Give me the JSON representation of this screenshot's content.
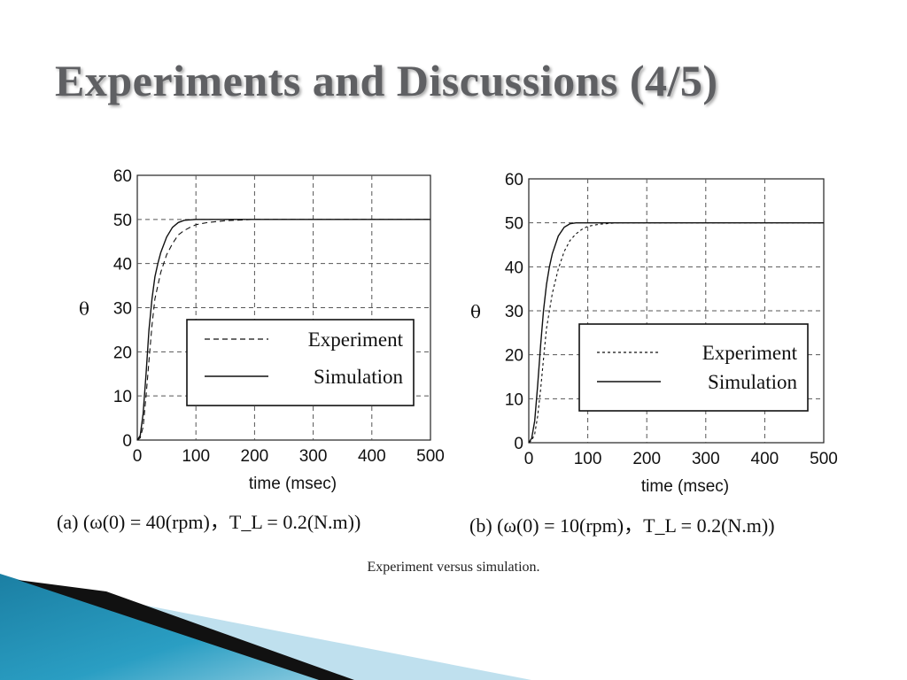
{
  "slide": {
    "title": "Experiments and Discussions (4/5)",
    "figure_caption": "Experiment versus simulation."
  },
  "colors": {
    "title": "#5f6063",
    "decor_blue": "#1b7fa3",
    "decor_light": "#bfe0ee",
    "decor_dark": "#111111"
  },
  "chart_data": [
    {
      "type": "line",
      "xlabel": "time (msec)",
      "ylabel": "θ",
      "xlim": [
        0,
        500
      ],
      "ylim": [
        0,
        60
      ],
      "x_ticks": [
        "0",
        "100",
        "200",
        "300",
        "400",
        "500"
      ],
      "y_ticks": [
        "0",
        "10",
        "20",
        "30",
        "40",
        "50",
        "60"
      ],
      "grid": true,
      "legend_position": "lower-right",
      "caption": "(a) (ω(0) = 40(rpm)，T_L = 0.2(N.m))",
      "series": [
        {
          "name": "Experiment",
          "style": "dashed",
          "x": [
            0,
            5,
            10,
            15,
            20,
            25,
            30,
            40,
            50,
            60,
            70,
            80,
            90,
            100,
            120,
            150,
            200,
            300,
            500
          ],
          "y": [
            0,
            0.5,
            3,
            10,
            18,
            26,
            32,
            38,
            42,
            44.5,
            46.5,
            47.5,
            48.2,
            48.8,
            49.3,
            49.7,
            50,
            50,
            50
          ]
        },
        {
          "name": "Simulation",
          "style": "solid",
          "x": [
            0,
            5,
            10,
            15,
            20,
            25,
            30,
            35,
            40,
            50,
            60,
            70,
            80,
            100,
            150,
            200,
            300,
            500
          ],
          "y": [
            0,
            1,
            6,
            15,
            25,
            32,
            37,
            40,
            42.5,
            46,
            48.2,
            49.3,
            49.8,
            50,
            50,
            50,
            50,
            50
          ]
        }
      ]
    },
    {
      "type": "line",
      "xlabel": "time (msec)",
      "ylabel": "θ",
      "xlim": [
        0,
        500
      ],
      "ylim": [
        0,
        60
      ],
      "x_ticks": [
        "0",
        "100",
        "200",
        "300",
        "400",
        "500"
      ],
      "y_ticks": [
        "0",
        "10",
        "20",
        "30",
        "40",
        "50",
        "60"
      ],
      "grid": true,
      "legend_position": "lower-right",
      "caption": "(b) (ω(0) = 10(rpm)，T_L = 0.2(N.m))",
      "series": [
        {
          "name": "Experiment",
          "style": "dotted",
          "x": [
            0,
            5,
            10,
            15,
            20,
            25,
            30,
            40,
            50,
            60,
            70,
            80,
            90,
            100,
            120,
            150,
            200,
            300,
            500
          ],
          "y": [
            0,
            0.5,
            2,
            6,
            12,
            19,
            26,
            34,
            39.5,
            43.5,
            46,
            47.5,
            48.5,
            49.2,
            49.7,
            50,
            50,
            50,
            50
          ]
        },
        {
          "name": "Simulation",
          "style": "solid",
          "x": [
            0,
            5,
            10,
            15,
            20,
            25,
            30,
            35,
            40,
            50,
            60,
            70,
            80,
            100,
            150,
            200,
            300,
            500
          ],
          "y": [
            0,
            1,
            5,
            13,
            22,
            30,
            36,
            40,
            43,
            47,
            49,
            49.8,
            50,
            50,
            50,
            50,
            50,
            50
          ]
        }
      ]
    }
  ]
}
